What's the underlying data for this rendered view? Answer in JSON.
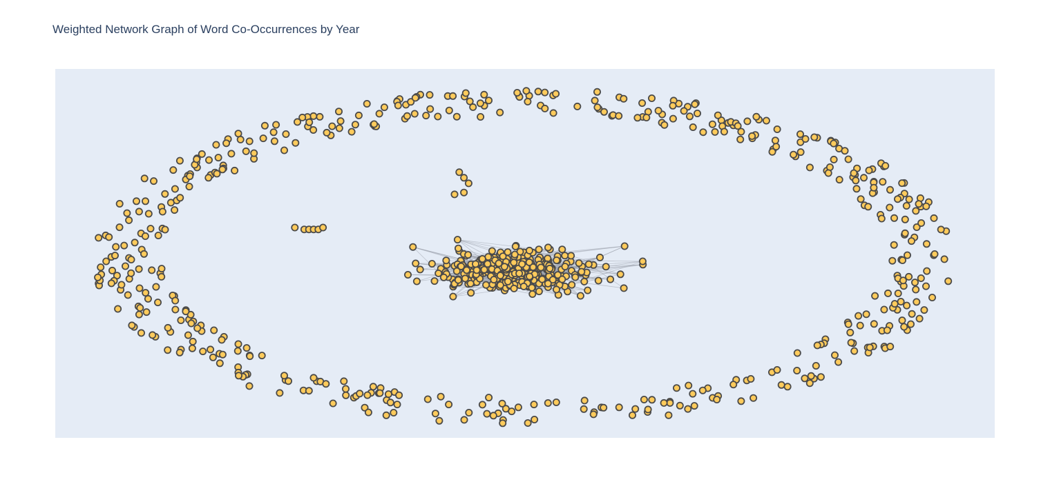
{
  "chart_data": {
    "type": "scatter",
    "title": "Weighted Network Graph of Word Co-Occurrences by Year",
    "xlabel": "",
    "ylabel": "",
    "x_range": [
      -1.0,
      1.0
    ],
    "y_range": [
      -1.0,
      1.0
    ],
    "grid": false,
    "axes_visible": false,
    "legend": "none",
    "approx_node_count": 900,
    "layout": "force-directed: dense core with short gray edges, ring of isolated nodes",
    "groups": [
      {
        "role": "core cluster",
        "center": [
          -0.03,
          -0.1
        ],
        "spread": [
          0.14,
          0.09
        ],
        "count": 310
      },
      {
        "role": "core fringe",
        "center": [
          -0.03,
          -0.1
        ],
        "spread": [
          0.28,
          0.16
        ],
        "count": 40
      },
      {
        "role": "outer ring",
        "center": [
          0.0,
          -0.02
        ],
        "radii": [
          0.86,
          0.85
        ],
        "count": 520
      },
      {
        "role": "chain",
        "points": [
          [
            -0.49,
            0.14
          ],
          [
            -0.47,
            0.13
          ],
          [
            -0.46,
            0.13
          ],
          [
            -0.45,
            0.13
          ],
          [
            -0.44,
            0.13
          ],
          [
            -0.43,
            0.14
          ]
        ]
      },
      {
        "role": "small group",
        "points": [
          [
            -0.14,
            0.44
          ],
          [
            -0.13,
            0.41
          ],
          [
            -0.12,
            0.38
          ],
          [
            -0.15,
            0.32
          ],
          [
            -0.13,
            0.33
          ]
        ]
      }
    ],
    "colors": {
      "plot_bg": "#e5ecf6",
      "node_fill": "#ffcb5c",
      "node_stroke": "#4a4a4a",
      "edge": "#9aa0ab",
      "title": "#2a3f5f"
    }
  }
}
